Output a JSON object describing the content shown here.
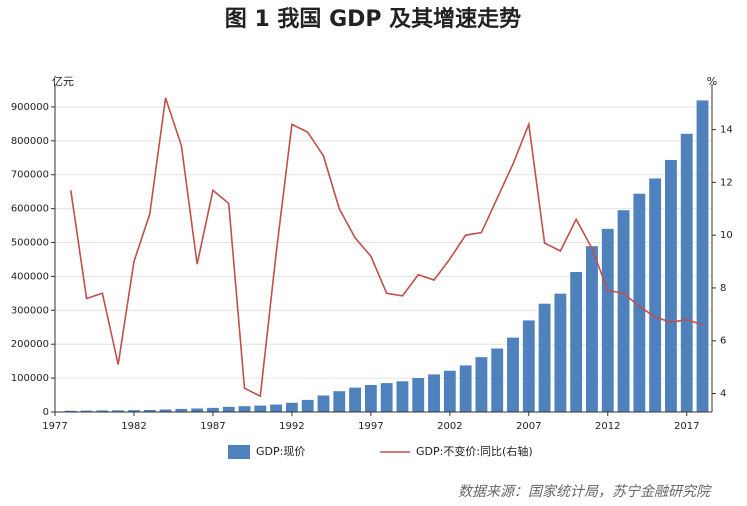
{
  "chart_data": {
    "type": "bar",
    "title": "图 1 我国 GDP 及其增速走势",
    "y_label": "亿元",
    "y2_label": "%",
    "source": "数据来源：国家统计局，苏宁金融研究院",
    "x": [
      1978,
      1979,
      1980,
      1981,
      1982,
      1983,
      1984,
      1985,
      1986,
      1987,
      1988,
      1989,
      1990,
      1991,
      1992,
      1993,
      1994,
      1995,
      1996,
      1997,
      1998,
      1999,
      2000,
      2001,
      2002,
      2003,
      2004,
      2005,
      2006,
      2007,
      2008,
      2009,
      2010,
      2011,
      2012,
      2013,
      2014,
      2015,
      2016,
      2017,
      2018
    ],
    "xlim": [
      1977,
      2018.6
    ],
    "xticks": [
      1977,
      1982,
      1987,
      1992,
      1997,
      2002,
      2007,
      2012,
      2017
    ],
    "ylim": [
      0,
      950000
    ],
    "yticks": [
      0,
      100000,
      200000,
      300000,
      400000,
      500000,
      600000,
      700000,
      800000,
      900000
    ],
    "y2lim": [
      3.3,
      15.5
    ],
    "y2ticks": [
      4,
      6,
      8,
      10,
      12,
      14
    ],
    "grid": true,
    "series": [
      {
        "name": "GDP:现价",
        "type": "bar",
        "color": "#4f81bd",
        "values": [
          3679,
          4101,
          4588,
          4936,
          5373,
          6021,
          7279,
          9099,
          10376,
          12175,
          15180,
          17180,
          18873,
          22006,
          27195,
          35673,
          48638,
          61340,
          71814,
          79715,
          85196,
          90564,
          100280,
          110863,
          121717,
          137422,
          161840,
          187319,
          219439,
          270232,
          319516,
          349081,
          413030,
          489301,
          540367,
          595244,
          643974,
          689052,
          743586,
          820754,
          919281
        ]
      },
      {
        "name": "GDP:不变价:同比(右轴)",
        "type": "line",
        "axis": "y2",
        "color": "#c0504d",
        "values": [
          11.7,
          7.6,
          7.8,
          5.1,
          9.0,
          10.8,
          15.2,
          13.4,
          8.9,
          11.7,
          11.2,
          4.2,
          3.9,
          9.3,
          14.2,
          13.9,
          13.0,
          11.0,
          9.9,
          9.2,
          7.8,
          7.7,
          8.5,
          8.3,
          9.1,
          10.0,
          10.1,
          11.4,
          12.7,
          14.2,
          9.7,
          9.4,
          10.6,
          9.5,
          7.9,
          7.8,
          7.3,
          6.9,
          6.7,
          6.8,
          6.6
        ]
      }
    ]
  }
}
